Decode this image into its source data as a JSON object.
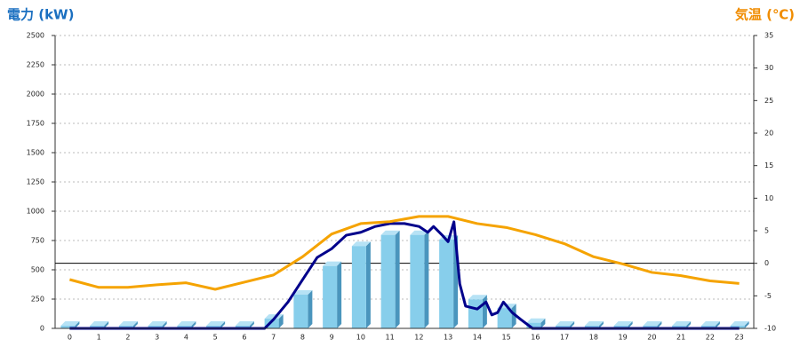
{
  "chart_data": {
    "type": "bar",
    "y_label": "電力 (kW)",
    "y2_label": "気温 (℃)",
    "categories": [
      "0",
      "1",
      "2",
      "3",
      "4",
      "5",
      "6",
      "7",
      "8",
      "9",
      "10",
      "11",
      "12",
      "13",
      "14",
      "15",
      "16",
      "17",
      "18",
      "19",
      "20",
      "21",
      "22",
      "23"
    ],
    "ylim": [
      0,
      2500
    ],
    "yticks": [
      0,
      250,
      500,
      750,
      1000,
      1250,
      1500,
      1750,
      2000,
      2250,
      2500
    ],
    "y2lim": [
      -10,
      35
    ],
    "y2ticks": [
      -10,
      -5,
      0,
      5,
      10,
      15,
      20,
      25,
      30,
      35
    ],
    "y2_refline": 0,
    "grid": true,
    "series": [
      {
        "type": "bar",
        "color": "#87ceeb",
        "values": [
          0,
          0,
          0,
          0,
          0,
          0,
          0,
          60,
          265,
          510,
          680,
          775,
          775,
          735,
          225,
          150,
          25,
          0,
          0,
          0,
          0,
          0,
          0,
          0
        ]
      },
      {
        "type": "line",
        "color": "#00008b",
        "x": [
          0,
          6.7,
          7,
          7.5,
          8,
          8.5,
          9,
          9.5,
          10,
          10.5,
          11,
          11.5,
          12,
          12.3,
          12.5,
          12.8,
          13,
          13.2,
          13.4,
          13.6,
          14,
          14.3,
          14.5,
          14.7,
          14.9,
          15.2,
          15.5,
          15.9,
          23
        ],
        "values": [
          0,
          0,
          75,
          225,
          415,
          605,
          680,
          795,
          820,
          870,
          895,
          895,
          870,
          820,
          870,
          795,
          740,
          910,
          380,
          190,
          165,
          225,
          115,
          135,
          225,
          135,
          75,
          0,
          0
        ]
      },
      {
        "type": "line",
        "axis": "y2",
        "color": "#f5a300",
        "values": [
          -2.5,
          -3.7,
          -3.7,
          -3.3,
          -3.0,
          -4.0,
          -2.9,
          -1.8,
          1.0,
          4.5,
          6.1,
          6.4,
          7.2,
          7.2,
          6.1,
          5.5,
          4.4,
          3.0,
          1.0,
          -0.1,
          -1.4,
          -1.9,
          -2.7,
          -3.1
        ]
      }
    ]
  }
}
